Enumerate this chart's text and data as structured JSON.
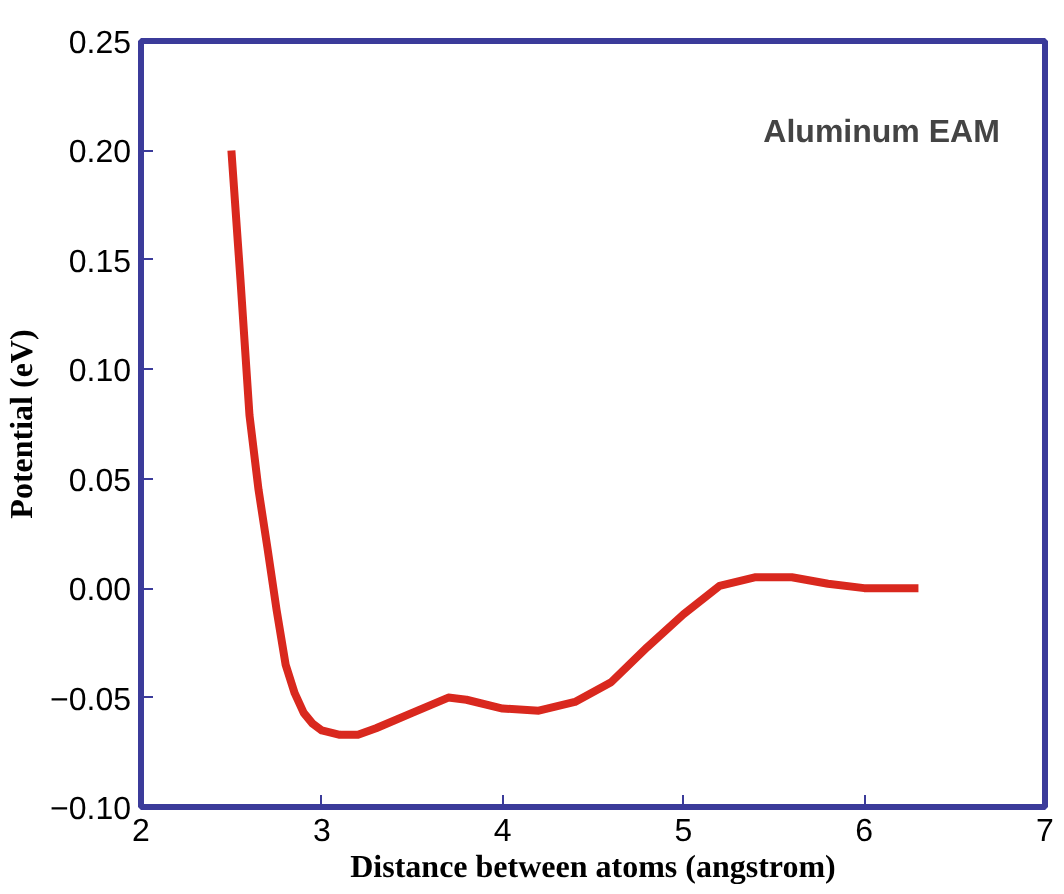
{
  "chart_data": {
    "type": "line",
    "xlabel": "Distance between atoms (angstrom)",
    "ylabel": "Potential (eV)",
    "annotations": [
      "Aluminum EAM"
    ],
    "xlim": [
      2,
      7
    ],
    "ylim": [
      -0.1,
      0.25
    ],
    "xticks": [
      2,
      3,
      4,
      5,
      6,
      7
    ],
    "yticks": [
      {
        "value": -0.1,
        "label": "−0.10"
      },
      {
        "value": -0.05,
        "label": "−0.05"
      },
      {
        "value": 0,
        "label": "0.00"
      },
      {
        "value": 0.05,
        "label": "0.05"
      },
      {
        "value": 0.1,
        "label": "0.10"
      },
      {
        "value": 0.15,
        "label": "0.15"
      },
      {
        "value": 0.2,
        "label": "0.20"
      },
      {
        "value": 0.25,
        "label": "0.25"
      }
    ],
    "marker": "none",
    "line_style": "solid",
    "series": [
      {
        "color": "#d9281e",
        "x": [
          2.5,
          2.55,
          2.6,
          2.65,
          2.7,
          2.75,
          2.8,
          2.85,
          2.9,
          2.95,
          3.0,
          3.1,
          3.2,
          3.3,
          3.5,
          3.7,
          3.8,
          4.0,
          4.2,
          4.4,
          4.6,
          4.8,
          5.0,
          5.2,
          5.4,
          5.6,
          5.8,
          6.0,
          6.3
        ],
        "values": [
          0.2,
          0.141,
          0.079,
          0.045,
          0.018,
          -0.01,
          -0.035,
          -0.048,
          -0.057,
          -0.062,
          -0.065,
          -0.067,
          -0.067,
          -0.064,
          -0.057,
          -0.05,
          -0.051,
          -0.055,
          -0.056,
          -0.052,
          -0.043,
          -0.027,
          -0.012,
          0.001,
          0.005,
          0.005,
          0.002,
          0.0,
          0.0
        ]
      }
    ]
  }
}
